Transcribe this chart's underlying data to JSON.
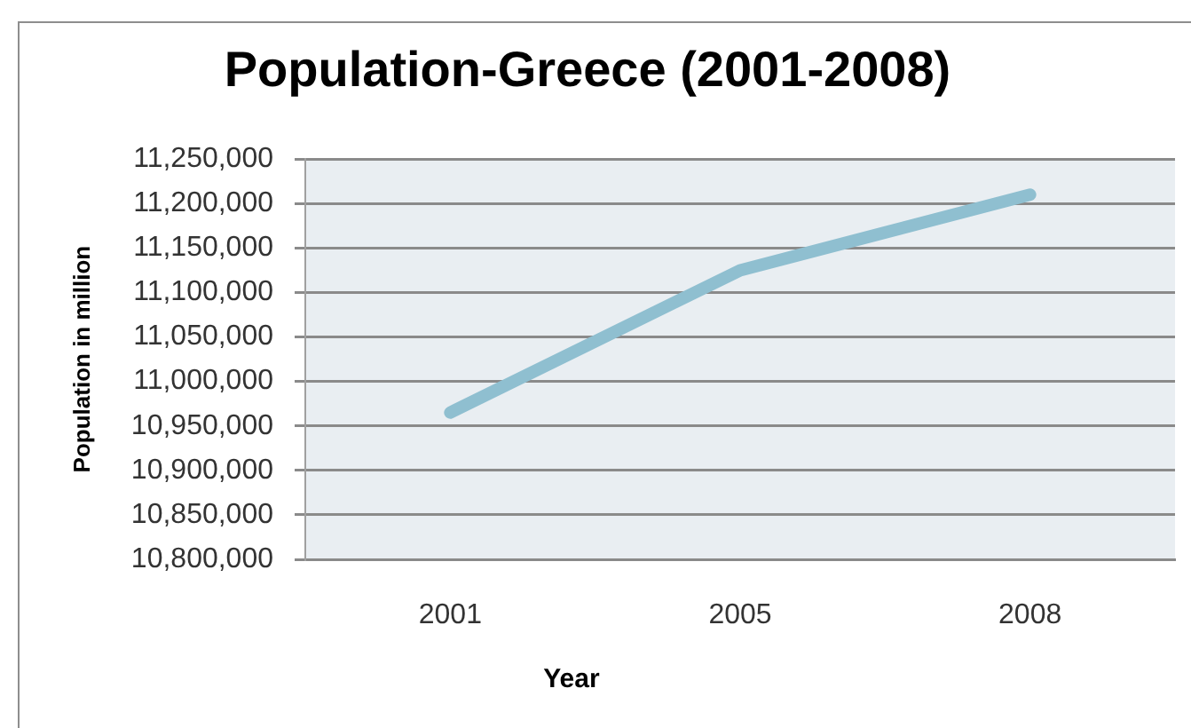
{
  "chart_data": {
    "type": "line",
    "title": "Population-Greece (2001-2008)",
    "xlabel": "Year",
    "ylabel": "Population in million",
    "categories": [
      "2001",
      "2005",
      "2008"
    ],
    "series": [
      {
        "color": "#8fbfd0",
        "values": [
          10965000,
          11125000,
          11210000
        ]
      }
    ],
    "ylim": [
      10800000,
      11250000
    ],
    "yticks": [
      {
        "value": 10800000,
        "label": "10,800,000"
      },
      {
        "value": 10850000,
        "label": "10,850,000"
      },
      {
        "value": 10900000,
        "label": "10,900,000"
      },
      {
        "value": 10950000,
        "label": "10,950,000"
      },
      {
        "value": 11000000,
        "label": "11,000,000"
      },
      {
        "value": 11050000,
        "label": "11,050,000"
      },
      {
        "value": 11100000,
        "label": "11,100,000"
      },
      {
        "value": 11150000,
        "label": "11,150,000"
      },
      {
        "value": 11200000,
        "label": "11,200,000"
      },
      {
        "value": 11250000,
        "label": "11,250,000"
      }
    ],
    "grid": "y",
    "legend": false,
    "marker": "none",
    "line_style": "solid"
  }
}
